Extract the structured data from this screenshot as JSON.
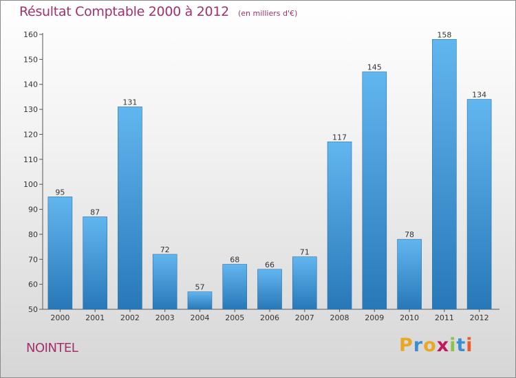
{
  "header": {
    "title": "Résultat Comptable 2000 à 2012",
    "subtitle": "(en milliers d'€)"
  },
  "footer": {
    "commune": "NOINTEL",
    "logo_letters": [
      "P",
      "r",
      "o",
      "x",
      "i",
      "t",
      "i"
    ],
    "logo_colors": [
      "#e8a825",
      "#3a8fd0",
      "#e8a825",
      "#c2185b",
      "#8bc34a",
      "#3a8fd0",
      "#e85c2b"
    ]
  },
  "chart_data": {
    "type": "bar",
    "categories": [
      "2000",
      "2001",
      "2002",
      "2003",
      "2004",
      "2005",
      "2006",
      "2007",
      "2008",
      "2009",
      "2010",
      "2011",
      "2012"
    ],
    "values": [
      95,
      87,
      131,
      72,
      57,
      68,
      66,
      71,
      117,
      145,
      78,
      158,
      134
    ],
    "ylim": [
      50,
      160
    ],
    "yticks": [
      50,
      60,
      70,
      80,
      90,
      100,
      110,
      120,
      130,
      140,
      150,
      160
    ],
    "grid": false,
    "bar_color_light": "#62b6ef",
    "bar_color_dark": "#2878b8"
  }
}
